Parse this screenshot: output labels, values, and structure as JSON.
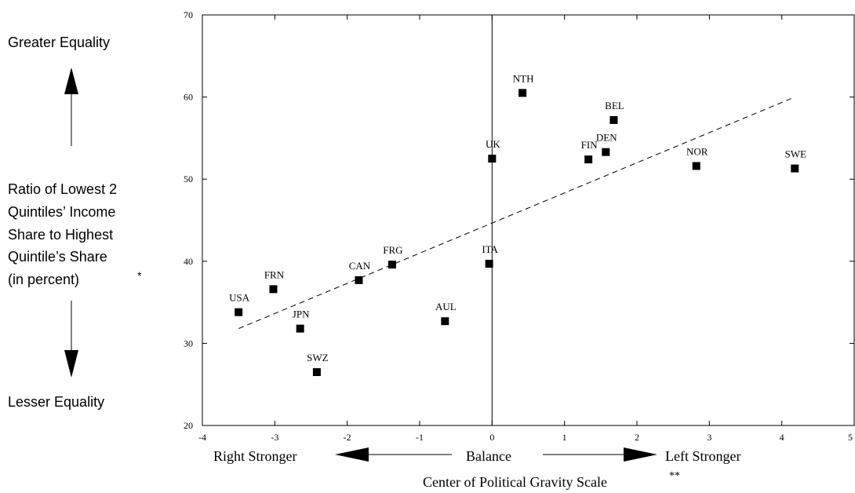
{
  "left_panel": {
    "top_label": "Greater Equality",
    "ylabel_lines": [
      "Ratio of Lowest 2",
      "Quintiles’ Income",
      "Share to Highest",
      "Quintile’s Share",
      "(in percent)"
    ],
    "ylabel_star": "*",
    "bottom_label": "Lesser Equality"
  },
  "bottom_panel": {
    "right_stronger": "Right Stronger",
    "balance": "Balance",
    "left_stronger": "Left Stronger",
    "xlabel": "Center of Political Gravity Scale",
    "xlabel_star": "**"
  },
  "chart_data": {
    "type": "scatter",
    "title": "",
    "xlabel": "Center of Political Gravity Scale",
    "ylabel": "Ratio of Lowest 2 Quintiles’ Income Share to Highest Quintile’s Share (in percent)",
    "xlim": [
      -4,
      5
    ],
    "ylim": [
      20,
      70
    ],
    "xticks": [
      -4,
      -3,
      -2,
      -1,
      0,
      1,
      2,
      3,
      4,
      5
    ],
    "yticks": [
      20,
      30,
      40,
      50,
      60,
      70
    ],
    "grid": false,
    "points": [
      {
        "label": "USA",
        "x": -3.5,
        "y": 33.8
      },
      {
        "label": "FRN",
        "x": -3.02,
        "y": 36.6
      },
      {
        "label": "JPN",
        "x": -2.65,
        "y": 31.8
      },
      {
        "label": "SWZ",
        "x": -2.42,
        "y": 26.5
      },
      {
        "label": "CAN",
        "x": -1.84,
        "y": 37.7
      },
      {
        "label": "FRG",
        "x": -1.38,
        "y": 39.6
      },
      {
        "label": "AUL",
        "x": -0.65,
        "y": 32.7
      },
      {
        "label": "ITA",
        "x": -0.04,
        "y": 39.7
      },
      {
        "label": "UK",
        "x": 0.0,
        "y": 52.5
      },
      {
        "label": "NTH",
        "x": 0.42,
        "y": 60.5
      },
      {
        "label": "FIN",
        "x": 1.33,
        "y": 52.4
      },
      {
        "label": "DEN",
        "x": 1.57,
        "y": 53.3
      },
      {
        "label": "BEL",
        "x": 1.68,
        "y": 57.2
      },
      {
        "label": "NOR",
        "x": 2.82,
        "y": 51.6
      },
      {
        "label": "SWE",
        "x": 4.18,
        "y": 51.3
      }
    ],
    "trend_line": {
      "x": [
        -3.5,
        4.18
      ],
      "y": [
        31.8,
        60.0
      ]
    },
    "reference_line_x": 0
  }
}
